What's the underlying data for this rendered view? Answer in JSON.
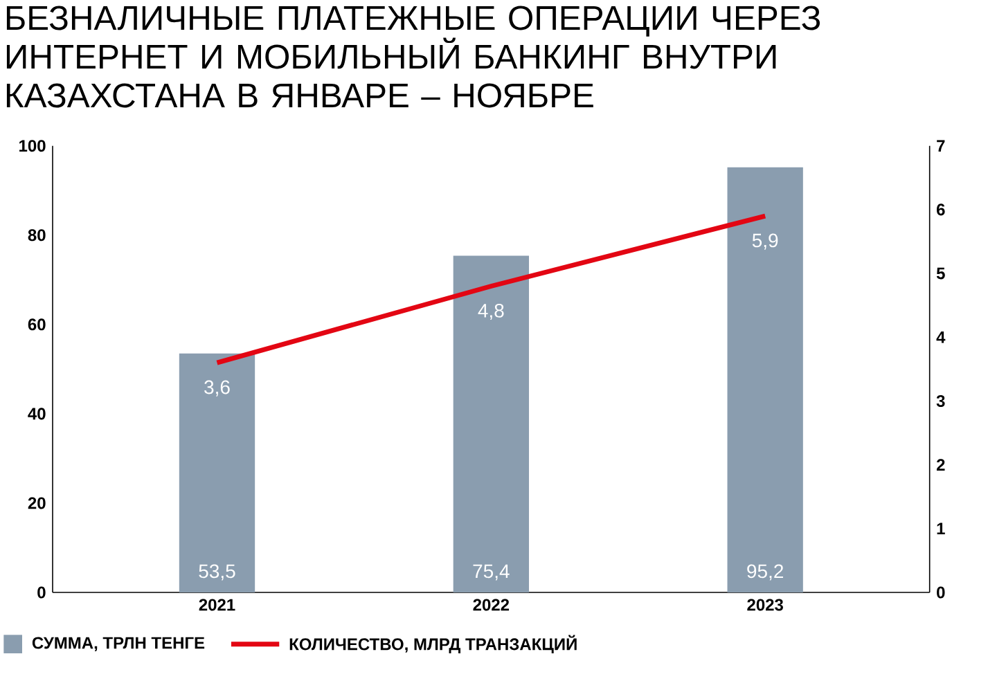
{
  "chart_data": {
    "type": "bar",
    "title": "БЕЗНАЛИЧНЫЕ ПЛАТЕЖНЫЕ ОПЕРАЦИИ ЧЕРЕЗ ИНТЕРНЕТ И МОБИЛЬНЫЙ БАНКИНГ ВНУТРИ КАЗАХСТАНА В ЯНВАРЕ – НОЯБРЕ",
    "categories": [
      "2021",
      "2022",
      "2023"
    ],
    "series": [
      {
        "name": "СУММА, ТРЛН ТЕНГЕ",
        "color": "#8a9daf",
        "values": [
          53.5,
          75.4,
          95.2
        ],
        "value_labels": [
          "53,5",
          "75,4",
          "95,2"
        ]
      },
      {
        "name": "КОЛИЧЕСТВО, МЛРД ТРАНЗАКЦИЙ",
        "type": "line",
        "axis": "y2",
        "color": "#e30613",
        "values": [
          3.6,
          4.8,
          5.9
        ],
        "value_labels": [
          "3,6",
          "4,8",
          "5,9"
        ]
      }
    ],
    "ylim": [
      0,
      100
    ],
    "yticks": [
      0,
      20,
      40,
      60,
      80,
      100
    ],
    "y2lim": [
      0,
      7
    ],
    "y2ticks": [
      0,
      1,
      2,
      3,
      4,
      5,
      6,
      7
    ],
    "legend": "bottom left"
  }
}
